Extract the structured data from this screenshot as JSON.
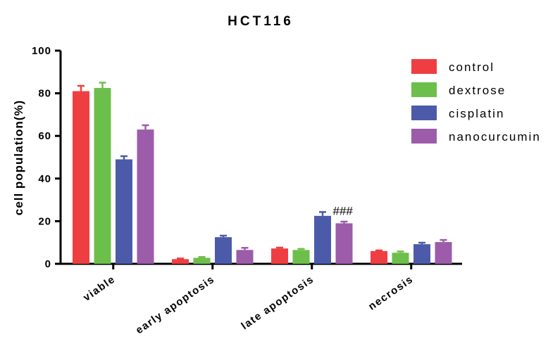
{
  "chart_data": {
    "type": "bar",
    "title": "HCT116",
    "xlabel": "",
    "ylabel": "cell population(%)",
    "ylim": [
      0,
      100
    ],
    "yticks": [
      "0",
      "20",
      "40",
      "60",
      "80",
      "100"
    ],
    "categories": [
      "viable",
      "early apoptosis",
      "late apoptosis",
      "necrosis"
    ],
    "series": [
      {
        "name": "control",
        "color": "#ef3e42",
        "values": [
          81,
          2.2,
          7.2,
          6.0
        ],
        "errors": [
          2.5,
          0.3,
          0.4,
          0.3
        ]
      },
      {
        "name": "dextrose",
        "color": "#6dbf4b",
        "values": [
          82.5,
          2.8,
          6.5,
          5.2
        ],
        "errors": [
          2.5,
          0.4,
          0.5,
          0.6
        ]
      },
      {
        "name": "cisplatin",
        "color": "#4c5ba9",
        "values": [
          49,
          12.5,
          22.5,
          9.2
        ],
        "errors": [
          1.5,
          0.7,
          1.8,
          0.7
        ]
      },
      {
        "name": "nanocurcumin",
        "color": "#9c5ca9",
        "values": [
          63,
          6.5,
          19,
          10.2
        ],
        "errors": [
          2.0,
          1.0,
          0.8,
          1.0
        ]
      }
    ],
    "legend_position": "top-right",
    "annotations": [
      {
        "text": "###",
        "category": "late apoptosis"
      }
    ]
  }
}
